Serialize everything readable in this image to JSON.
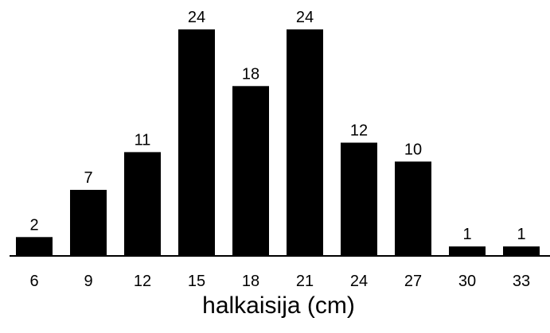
{
  "chart_data": {
    "type": "bar",
    "categories": [
      "6",
      "9",
      "12",
      "15",
      "18",
      "21",
      "24",
      "27",
      "30",
      "33"
    ],
    "values": [
      2,
      7,
      11,
      24,
      18,
      24,
      12,
      10,
      1,
      1
    ],
    "data_labels": [
      "2",
      "7",
      "11",
      "24",
      "18",
      "24",
      "12",
      "10",
      "1",
      "1"
    ],
    "title": "",
    "xlabel": "halkaisija (cm)",
    "ylabel": "",
    "ylim": [
      0,
      24
    ],
    "grid": false,
    "legend": "none",
    "bar_color": "#000000"
  }
}
